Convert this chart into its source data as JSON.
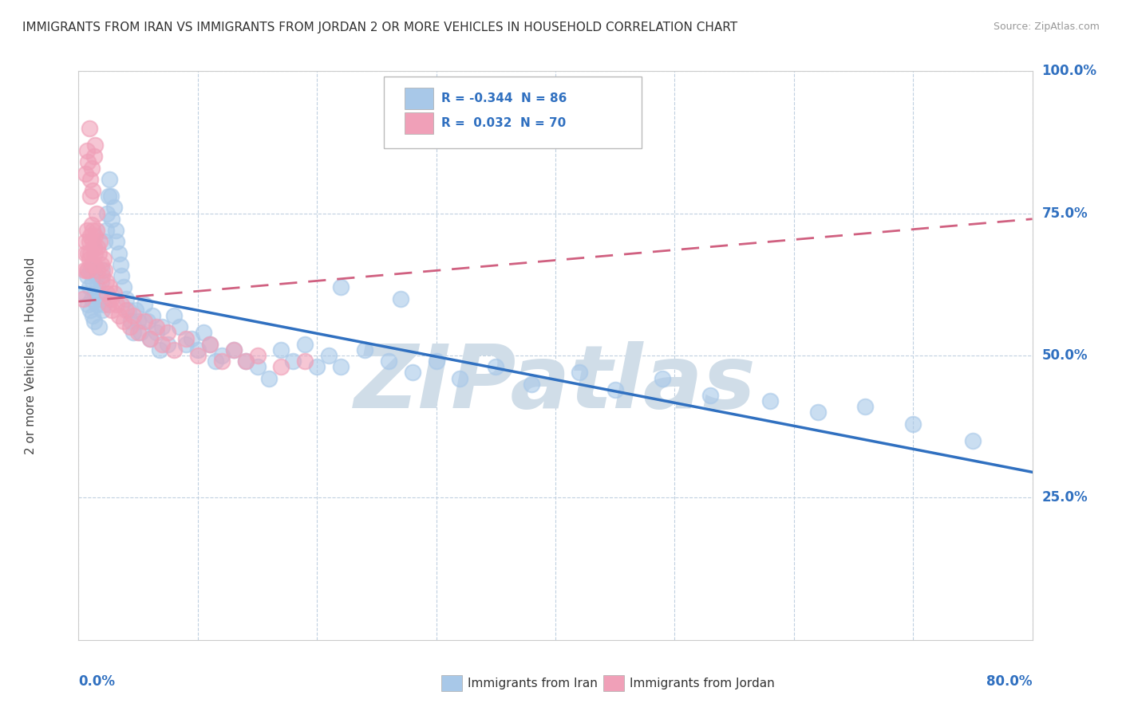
{
  "title": "IMMIGRANTS FROM IRAN VS IMMIGRANTS FROM JORDAN 2 OR MORE VEHICLES IN HOUSEHOLD CORRELATION CHART",
  "source": "Source: ZipAtlas.com",
  "legend_iran": "Immigrants from Iran",
  "legend_jordan": "Immigrants from Jordan",
  "iran_R": -0.344,
  "iran_N": 86,
  "jordan_R": 0.032,
  "jordan_N": 70,
  "iran_color": "#a8c8e8",
  "jordan_color": "#f0a0b8",
  "iran_line_color": "#3070c0",
  "jordan_line_color": "#d06080",
  "background_color": "#ffffff",
  "grid_color": "#c0d0e0",
  "watermark": "ZIPatlas",
  "watermark_color": "#d0dde8",
  "xmin": 0.0,
  "xmax": 0.8,
  "ymin": 0.0,
  "ymax": 1.0,
  "iran_line_x0": 0.0,
  "iran_line_y0": 0.62,
  "iran_line_x1": 0.8,
  "iran_line_y1": 0.295,
  "jordan_line_x0": 0.0,
  "jordan_line_y0": 0.595,
  "jordan_line_x1": 0.8,
  "jordan_line_y1": 0.74,
  "iran_scatter_x": [
    0.005,
    0.007,
    0.008,
    0.009,
    0.01,
    0.01,
    0.011,
    0.012,
    0.012,
    0.013,
    0.014,
    0.015,
    0.015,
    0.016,
    0.017,
    0.018,
    0.019,
    0.02,
    0.02,
    0.021,
    0.022,
    0.023,
    0.024,
    0.025,
    0.026,
    0.027,
    0.028,
    0.03,
    0.031,
    0.032,
    0.034,
    0.035,
    0.036,
    0.038,
    0.04,
    0.042,
    0.044,
    0.046,
    0.048,
    0.05,
    0.052,
    0.055,
    0.058,
    0.06,
    0.062,
    0.065,
    0.068,
    0.07,
    0.075,
    0.08,
    0.085,
    0.09,
    0.095,
    0.1,
    0.105,
    0.11,
    0.115,
    0.12,
    0.13,
    0.14,
    0.15,
    0.16,
    0.17,
    0.18,
    0.19,
    0.2,
    0.21,
    0.22,
    0.24,
    0.26,
    0.28,
    0.3,
    0.32,
    0.35,
    0.38,
    0.42,
    0.45,
    0.49,
    0.53,
    0.58,
    0.62,
    0.66,
    0.7,
    0.75,
    0.22,
    0.27
  ],
  "iran_scatter_y": [
    0.61,
    0.64,
    0.59,
    0.62,
    0.65,
    0.58,
    0.6,
    0.57,
    0.63,
    0.56,
    0.61,
    0.64,
    0.59,
    0.62,
    0.55,
    0.6,
    0.63,
    0.58,
    0.65,
    0.59,
    0.7,
    0.72,
    0.75,
    0.78,
    0.81,
    0.78,
    0.74,
    0.76,
    0.72,
    0.7,
    0.68,
    0.66,
    0.64,
    0.62,
    0.6,
    0.58,
    0.56,
    0.54,
    0.58,
    0.56,
    0.54,
    0.59,
    0.56,
    0.53,
    0.57,
    0.54,
    0.51,
    0.55,
    0.52,
    0.57,
    0.55,
    0.52,
    0.53,
    0.51,
    0.54,
    0.52,
    0.49,
    0.5,
    0.51,
    0.49,
    0.48,
    0.46,
    0.51,
    0.49,
    0.52,
    0.48,
    0.5,
    0.48,
    0.51,
    0.49,
    0.47,
    0.49,
    0.46,
    0.48,
    0.45,
    0.47,
    0.44,
    0.46,
    0.43,
    0.42,
    0.4,
    0.41,
    0.38,
    0.35,
    0.62,
    0.6
  ],
  "jordan_scatter_x": [
    0.004,
    0.005,
    0.006,
    0.006,
    0.007,
    0.007,
    0.008,
    0.008,
    0.009,
    0.009,
    0.01,
    0.01,
    0.011,
    0.011,
    0.012,
    0.012,
    0.013,
    0.013,
    0.014,
    0.014,
    0.015,
    0.015,
    0.016,
    0.016,
    0.017,
    0.018,
    0.019,
    0.02,
    0.021,
    0.022,
    0.023,
    0.024,
    0.025,
    0.026,
    0.027,
    0.028,
    0.03,
    0.032,
    0.034,
    0.036,
    0.038,
    0.04,
    0.043,
    0.046,
    0.05,
    0.055,
    0.06,
    0.065,
    0.07,
    0.075,
    0.08,
    0.09,
    0.1,
    0.11,
    0.12,
    0.13,
    0.14,
    0.15,
    0.17,
    0.19,
    0.006,
    0.007,
    0.008,
    0.009,
    0.01,
    0.01,
    0.011,
    0.012,
    0.013,
    0.014
  ],
  "jordan_scatter_y": [
    0.6,
    0.65,
    0.68,
    0.7,
    0.65,
    0.72,
    0.68,
    0.65,
    0.7,
    0.67,
    0.71,
    0.68,
    0.73,
    0.66,
    0.7,
    0.72,
    0.66,
    0.69,
    0.71,
    0.68,
    0.75,
    0.72,
    0.69,
    0.65,
    0.68,
    0.7,
    0.66,
    0.64,
    0.67,
    0.65,
    0.63,
    0.61,
    0.59,
    0.62,
    0.6,
    0.58,
    0.61,
    0.59,
    0.57,
    0.59,
    0.56,
    0.58,
    0.55,
    0.57,
    0.54,
    0.56,
    0.53,
    0.55,
    0.52,
    0.54,
    0.51,
    0.53,
    0.5,
    0.52,
    0.49,
    0.51,
    0.49,
    0.5,
    0.48,
    0.49,
    0.82,
    0.86,
    0.84,
    0.9,
    0.78,
    0.81,
    0.83,
    0.79,
    0.85,
    0.87
  ]
}
